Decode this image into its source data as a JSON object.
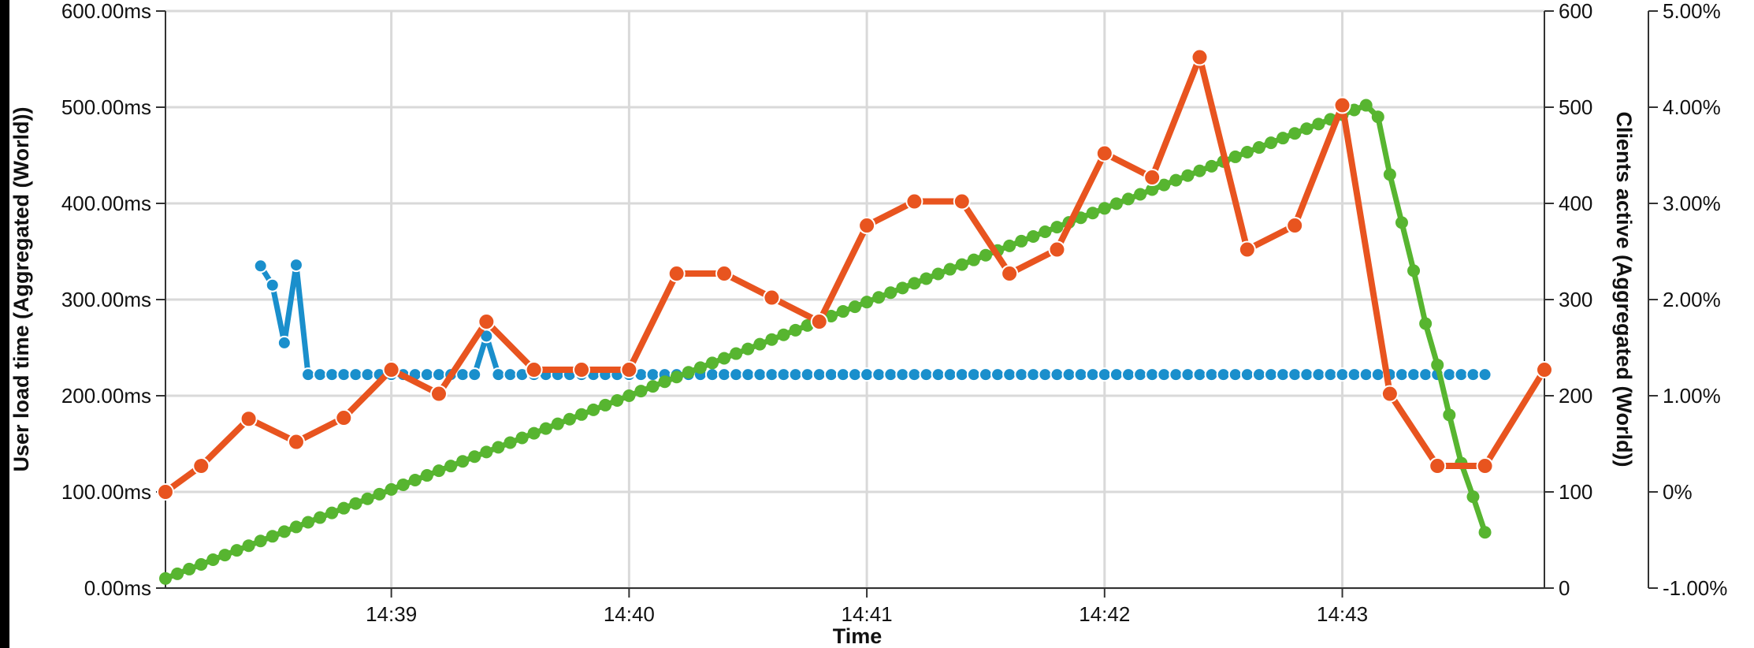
{
  "chart_data": {
    "type": "line",
    "xlabel": "Time",
    "y_left_label": "User load time (Aggregated (World))",
    "y_right_label": "Clients active (Aggregated (World))",
    "y_right2_label": "",
    "x_ticks": [
      "14:39",
      "14:40",
      "14:41",
      "14:42",
      "14:43"
    ],
    "x_range_minutes": [
      38.05,
      43.85
    ],
    "y_left_ticks": [
      "0.00ms",
      "100.00ms",
      "200.00ms",
      "300.00ms",
      "400.00ms",
      "500.00ms",
      "600.00ms"
    ],
    "y_left_range": [
      0,
      600
    ],
    "y_right_ticks": [
      "0",
      "100",
      "200",
      "300",
      "400",
      "500",
      "600"
    ],
    "y_right_range": [
      0,
      600
    ],
    "y_right2_ticks": [
      "-1.00%",
      "0%",
      "1.00%",
      "2.00%",
      "3.00%",
      "4.00%",
      "5.00%"
    ],
    "y_right2_range": [
      -1,
      5
    ],
    "grid": true,
    "colors": {
      "user_load_time": "#e8541f",
      "clients_active": "#57b530",
      "third_series": "#1a8fcc",
      "grid": "#d9d9d9",
      "axis": "#333333"
    },
    "series": [
      {
        "name": "User load time",
        "axis": "left",
        "x_minutes": [
          38.05,
          38.2,
          38.4,
          38.6,
          38.8,
          39.0,
          39.2,
          39.4,
          39.6,
          39.8,
          40.0,
          40.2,
          40.4,
          40.6,
          40.8,
          41.0,
          41.2,
          41.4,
          41.6,
          41.8,
          42.0,
          42.2,
          42.4,
          42.6,
          42.8,
          43.0,
          43.2,
          43.4,
          43.6,
          43.85
        ],
        "values": [
          100,
          127,
          176,
          152,
          177,
          227,
          202,
          277,
          227,
          227,
          227,
          327,
          327,
          302,
          277,
          377,
          402,
          402,
          327,
          352,
          452,
          427,
          552,
          352,
          377,
          502,
          202,
          127,
          127,
          227
        ]
      },
      {
        "name": "Clients active",
        "axis": "right",
        "x_start_minutes": 38.05,
        "x_peak_minutes": 43.1,
        "x_end_minutes": 43.6,
        "start_value": 10,
        "peak_value": 502,
        "end_value": 58,
        "ramp_step": 0.05,
        "descent_points": [
          {
            "x": 43.1,
            "v": 502
          },
          {
            "x": 43.15,
            "v": 490
          },
          {
            "x": 43.2,
            "v": 430
          },
          {
            "x": 43.25,
            "v": 380
          },
          {
            "x": 43.3,
            "v": 330
          },
          {
            "x": 43.35,
            "v": 275
          },
          {
            "x": 43.4,
            "v": 232
          },
          {
            "x": 43.45,
            "v": 180
          },
          {
            "x": 43.5,
            "v": 130
          },
          {
            "x": 43.55,
            "v": 95
          },
          {
            "x": 43.6,
            "v": 58
          }
        ]
      },
      {
        "axis": "left",
        "color_key": "third_series",
        "spike_points": [
          {
            "x": 38.45,
            "v": 335
          },
          {
            "x": 38.5,
            "v": 315
          },
          {
            "x": 38.55,
            "v": 255
          },
          {
            "x": 38.6,
            "v": 336
          },
          {
            "x": 38.65,
            "v": 222
          }
        ],
        "flat_start": 38.65,
        "flat_end": 43.6,
        "flat_step": 0.05,
        "flat_value": 222,
        "bump": {
          "x": 39.4,
          "v": 262
        }
      }
    ]
  }
}
